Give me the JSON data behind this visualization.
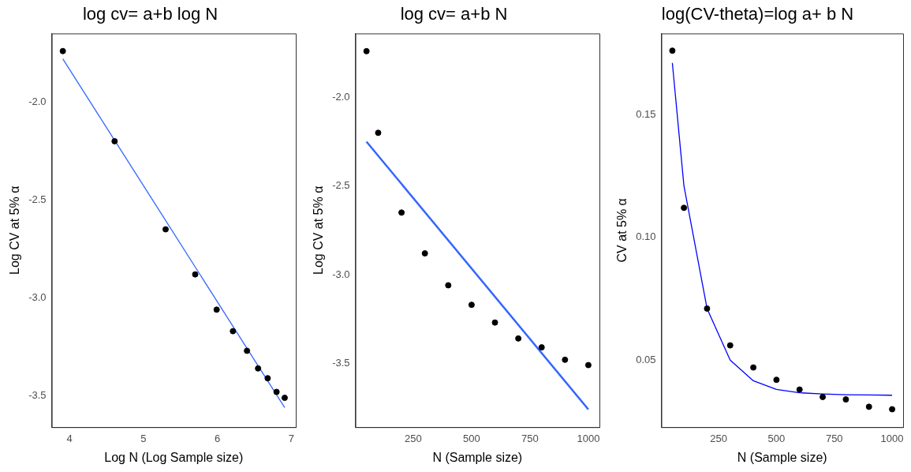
{
  "chart_data": [
    {
      "type": "scatter",
      "title": "log cv= a+b log N",
      "xlabel": "Log N (Log Sample size)",
      "ylabel": "Log CV at 5% α",
      "xlim": [
        3.76,
        7.06
      ],
      "xticks": [
        4,
        5,
        6,
        7
      ],
      "ylim": [
        -3.66,
        -1.65
      ],
      "yticks": [
        {
          "value": -2,
          "label": "-2.0"
        },
        -2.5,
        {
          "value": -3,
          "label": "-3.0"
        },
        -3.5
      ],
      "grid": false,
      "legend": false,
      "marker": "circle",
      "series": [
        {
          "type": "scatter",
          "color": "#000000",
          "x": [
            3.91,
            4.61,
            5.3,
            5.7,
            5.99,
            6.21,
            6.4,
            6.55,
            6.68,
            6.8,
            6.91
          ],
          "values": [
            -1.74,
            -2.2,
            -2.65,
            -2.88,
            -3.06,
            -3.17,
            -3.27,
            -3.36,
            -3.41,
            -3.48,
            -3.51
          ]
        },
        {
          "type": "line",
          "color": "#3366ff",
          "marker": "none",
          "x": [
            3.91,
            6.91
          ],
          "values": [
            -1.78,
            -3.56
          ]
        }
      ]
    },
    {
      "type": "scatter",
      "title": "log cv= a+b N",
      "xlabel": "N (Sample size)",
      "ylabel": "Log CV at 5% α",
      "xlim": [
        2.5,
        1047.5
      ],
      "xticks": [
        250,
        500,
        750,
        1000
      ],
      "ylim": [
        -3.86,
        -1.64
      ],
      "yticks": [
        {
          "value": -2,
          "label": "-2.0"
        },
        -2.5,
        {
          "value": -3,
          "label": "-3.0"
        },
        -3.5
      ],
      "grid": false,
      "legend": false,
      "marker": "circle",
      "series": [
        {
          "type": "scatter",
          "color": "#000000",
          "x": [
            50,
            100,
            200,
            300,
            400,
            500,
            600,
            700,
            800,
            900,
            1000
          ],
          "values": [
            -1.74,
            -2.2,
            -2.65,
            -2.88,
            -3.06,
            -3.17,
            -3.27,
            -3.36,
            -3.41,
            -3.48,
            -3.51
          ]
        },
        {
          "type": "line",
          "color": "#3366ff",
          "marker": "none",
          "x": [
            50,
            1000
          ],
          "values": [
            -2.25,
            -3.76
          ]
        }
      ]
    },
    {
      "type": "scatter",
      "title": "log(CV-theta)=log a+ b N",
      "xlabel": "N (Sample size)",
      "ylabel": "CV at 5% α",
      "xlim": [
        2.5,
        1047.5
      ],
      "xticks": [
        250,
        500,
        750,
        1000
      ],
      "ylim": [
        0.0227,
        0.183
      ],
      "yticks": [
        0.05,
        {
          "value": 0.1,
          "label": "0.10"
        },
        0.15
      ],
      "grid": false,
      "legend": false,
      "marker": "circle",
      "series": [
        {
          "type": "scatter",
          "color": "#000000",
          "x": [
            50,
            100,
            200,
            300,
            400,
            500,
            600,
            700,
            800,
            900,
            1000
          ],
          "values": [
            0.176,
            0.112,
            0.071,
            0.056,
            0.047,
            0.042,
            0.038,
            0.035,
            0.034,
            0.031,
            0.03
          ]
        },
        {
          "type": "line",
          "color": "#0000ff",
          "marker": "none",
          "x": [
            50,
            100,
            200,
            300,
            400,
            500,
            600,
            700,
            800,
            900,
            1000
          ],
          "values": [
            0.171,
            0.121,
            0.071,
            0.05,
            0.0416,
            0.0381,
            0.0367,
            0.0362,
            0.0359,
            0.0358,
            0.0357
          ]
        }
      ]
    }
  ]
}
